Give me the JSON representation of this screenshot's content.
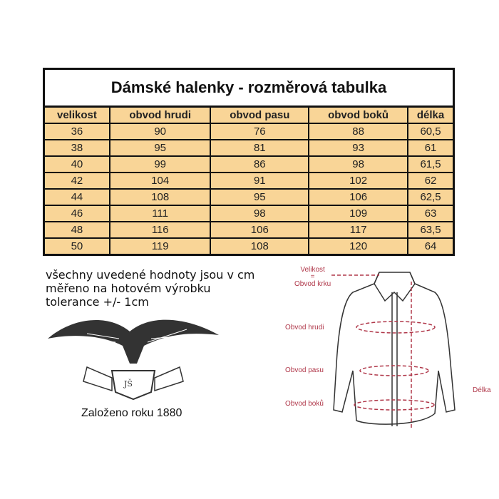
{
  "table": {
    "title": "Dámské halenky - rozměrová tabulka",
    "headers": [
      "velikost",
      "obvod hrudi",
      "obvod pasu",
      "obvod boků",
      "délka"
    ],
    "rows": [
      [
        "36",
        "90",
        "76",
        "88",
        "60,5"
      ],
      [
        "38",
        "95",
        "81",
        "93",
        "61"
      ],
      [
        "40",
        "99",
        "86",
        "98",
        "61,5"
      ],
      [
        "42",
        "104",
        "91",
        "102",
        "62"
      ],
      [
        "44",
        "108",
        "95",
        "106",
        "62,5"
      ],
      [
        "46",
        "111",
        "98",
        "109",
        "63"
      ],
      [
        "48",
        "116",
        "106",
        "117",
        "63,5"
      ],
      [
        "50",
        "119",
        "108",
        "120",
        "64"
      ]
    ],
    "fill_color": "#f9d597"
  },
  "notes": [
    "všechny uvedené hodnoty jsou v cm",
    "měřeno na hotovém výrobku",
    "tolerance +/- 1cm"
  ],
  "logo": {
    "monogram": "JŠ",
    "caption": "Založeno roku 1880"
  },
  "diagram": {
    "label_color": "#b0384a",
    "velikost": "Velikost",
    "equals": "=",
    "krk": "Obvod krku",
    "hrudi": "Obvod hrudi",
    "pasu": "Obvod pasu",
    "boku": "Obvod boků",
    "delka": "Délka"
  }
}
